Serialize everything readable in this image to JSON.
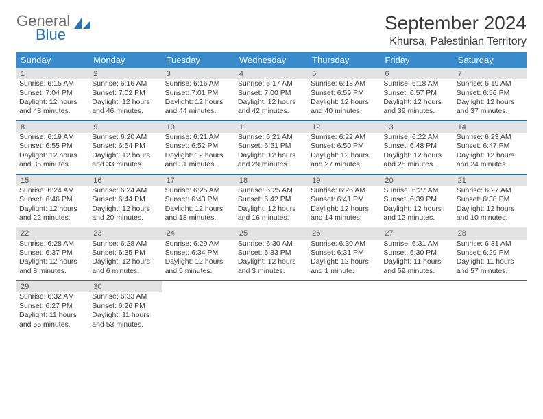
{
  "logo": {
    "general": "General",
    "blue": "Blue"
  },
  "title": "September 2024",
  "location": "Khursa, Palestinian Territory",
  "colors": {
    "header_bg": "#3a8bcb",
    "header_text": "#ffffff",
    "daynum_bg": "#e3e3e3",
    "row_border": "#2c6ca5",
    "text": "#3a3a3a",
    "logo_gray": "#6b6b6b",
    "logo_blue": "#2474bb"
  },
  "typography": {
    "title_fontsize": 28,
    "location_fontsize": 16,
    "dayheader_fontsize": 13,
    "cell_fontsize": 10.5
  },
  "day_headers": [
    "Sunday",
    "Monday",
    "Tuesday",
    "Wednesday",
    "Thursday",
    "Friday",
    "Saturday"
  ],
  "weeks": [
    [
      {
        "n": "1",
        "sr": "Sunrise: 6:15 AM",
        "ss": "Sunset: 7:04 PM",
        "d1": "Daylight: 12 hours",
        "d2": "and 48 minutes."
      },
      {
        "n": "2",
        "sr": "Sunrise: 6:16 AM",
        "ss": "Sunset: 7:02 PM",
        "d1": "Daylight: 12 hours",
        "d2": "and 46 minutes."
      },
      {
        "n": "3",
        "sr": "Sunrise: 6:16 AM",
        "ss": "Sunset: 7:01 PM",
        "d1": "Daylight: 12 hours",
        "d2": "and 44 minutes."
      },
      {
        "n": "4",
        "sr": "Sunrise: 6:17 AM",
        "ss": "Sunset: 7:00 PM",
        "d1": "Daylight: 12 hours",
        "d2": "and 42 minutes."
      },
      {
        "n": "5",
        "sr": "Sunrise: 6:18 AM",
        "ss": "Sunset: 6:59 PM",
        "d1": "Daylight: 12 hours",
        "d2": "and 40 minutes."
      },
      {
        "n": "6",
        "sr": "Sunrise: 6:18 AM",
        "ss": "Sunset: 6:57 PM",
        "d1": "Daylight: 12 hours",
        "d2": "and 39 minutes."
      },
      {
        "n": "7",
        "sr": "Sunrise: 6:19 AM",
        "ss": "Sunset: 6:56 PM",
        "d1": "Daylight: 12 hours",
        "d2": "and 37 minutes."
      }
    ],
    [
      {
        "n": "8",
        "sr": "Sunrise: 6:19 AM",
        "ss": "Sunset: 6:55 PM",
        "d1": "Daylight: 12 hours",
        "d2": "and 35 minutes."
      },
      {
        "n": "9",
        "sr": "Sunrise: 6:20 AM",
        "ss": "Sunset: 6:54 PM",
        "d1": "Daylight: 12 hours",
        "d2": "and 33 minutes."
      },
      {
        "n": "10",
        "sr": "Sunrise: 6:21 AM",
        "ss": "Sunset: 6:52 PM",
        "d1": "Daylight: 12 hours",
        "d2": "and 31 minutes."
      },
      {
        "n": "11",
        "sr": "Sunrise: 6:21 AM",
        "ss": "Sunset: 6:51 PM",
        "d1": "Daylight: 12 hours",
        "d2": "and 29 minutes."
      },
      {
        "n": "12",
        "sr": "Sunrise: 6:22 AM",
        "ss": "Sunset: 6:50 PM",
        "d1": "Daylight: 12 hours",
        "d2": "and 27 minutes."
      },
      {
        "n": "13",
        "sr": "Sunrise: 6:22 AM",
        "ss": "Sunset: 6:48 PM",
        "d1": "Daylight: 12 hours",
        "d2": "and 25 minutes."
      },
      {
        "n": "14",
        "sr": "Sunrise: 6:23 AM",
        "ss": "Sunset: 6:47 PM",
        "d1": "Daylight: 12 hours",
        "d2": "and 24 minutes."
      }
    ],
    [
      {
        "n": "15",
        "sr": "Sunrise: 6:24 AM",
        "ss": "Sunset: 6:46 PM",
        "d1": "Daylight: 12 hours",
        "d2": "and 22 minutes."
      },
      {
        "n": "16",
        "sr": "Sunrise: 6:24 AM",
        "ss": "Sunset: 6:44 PM",
        "d1": "Daylight: 12 hours",
        "d2": "and 20 minutes."
      },
      {
        "n": "17",
        "sr": "Sunrise: 6:25 AM",
        "ss": "Sunset: 6:43 PM",
        "d1": "Daylight: 12 hours",
        "d2": "and 18 minutes."
      },
      {
        "n": "18",
        "sr": "Sunrise: 6:25 AM",
        "ss": "Sunset: 6:42 PM",
        "d1": "Daylight: 12 hours",
        "d2": "and 16 minutes."
      },
      {
        "n": "19",
        "sr": "Sunrise: 6:26 AM",
        "ss": "Sunset: 6:41 PM",
        "d1": "Daylight: 12 hours",
        "d2": "and 14 minutes."
      },
      {
        "n": "20",
        "sr": "Sunrise: 6:27 AM",
        "ss": "Sunset: 6:39 PM",
        "d1": "Daylight: 12 hours",
        "d2": "and 12 minutes."
      },
      {
        "n": "21",
        "sr": "Sunrise: 6:27 AM",
        "ss": "Sunset: 6:38 PM",
        "d1": "Daylight: 12 hours",
        "d2": "and 10 minutes."
      }
    ],
    [
      {
        "n": "22",
        "sr": "Sunrise: 6:28 AM",
        "ss": "Sunset: 6:37 PM",
        "d1": "Daylight: 12 hours",
        "d2": "and 8 minutes."
      },
      {
        "n": "23",
        "sr": "Sunrise: 6:28 AM",
        "ss": "Sunset: 6:35 PM",
        "d1": "Daylight: 12 hours",
        "d2": "and 6 minutes."
      },
      {
        "n": "24",
        "sr": "Sunrise: 6:29 AM",
        "ss": "Sunset: 6:34 PM",
        "d1": "Daylight: 12 hours",
        "d2": "and 5 minutes."
      },
      {
        "n": "25",
        "sr": "Sunrise: 6:30 AM",
        "ss": "Sunset: 6:33 PM",
        "d1": "Daylight: 12 hours",
        "d2": "and 3 minutes."
      },
      {
        "n": "26",
        "sr": "Sunrise: 6:30 AM",
        "ss": "Sunset: 6:31 PM",
        "d1": "Daylight: 12 hours",
        "d2": "and 1 minute."
      },
      {
        "n": "27",
        "sr": "Sunrise: 6:31 AM",
        "ss": "Sunset: 6:30 PM",
        "d1": "Daylight: 11 hours",
        "d2": "and 59 minutes."
      },
      {
        "n": "28",
        "sr": "Sunrise: 6:31 AM",
        "ss": "Sunset: 6:29 PM",
        "d1": "Daylight: 11 hours",
        "d2": "and 57 minutes."
      }
    ],
    [
      {
        "n": "29",
        "sr": "Sunrise: 6:32 AM",
        "ss": "Sunset: 6:27 PM",
        "d1": "Daylight: 11 hours",
        "d2": "and 55 minutes."
      },
      {
        "n": "30",
        "sr": "Sunrise: 6:33 AM",
        "ss": "Sunset: 6:26 PM",
        "d1": "Daylight: 11 hours",
        "d2": "and 53 minutes."
      },
      null,
      null,
      null,
      null,
      null
    ]
  ]
}
